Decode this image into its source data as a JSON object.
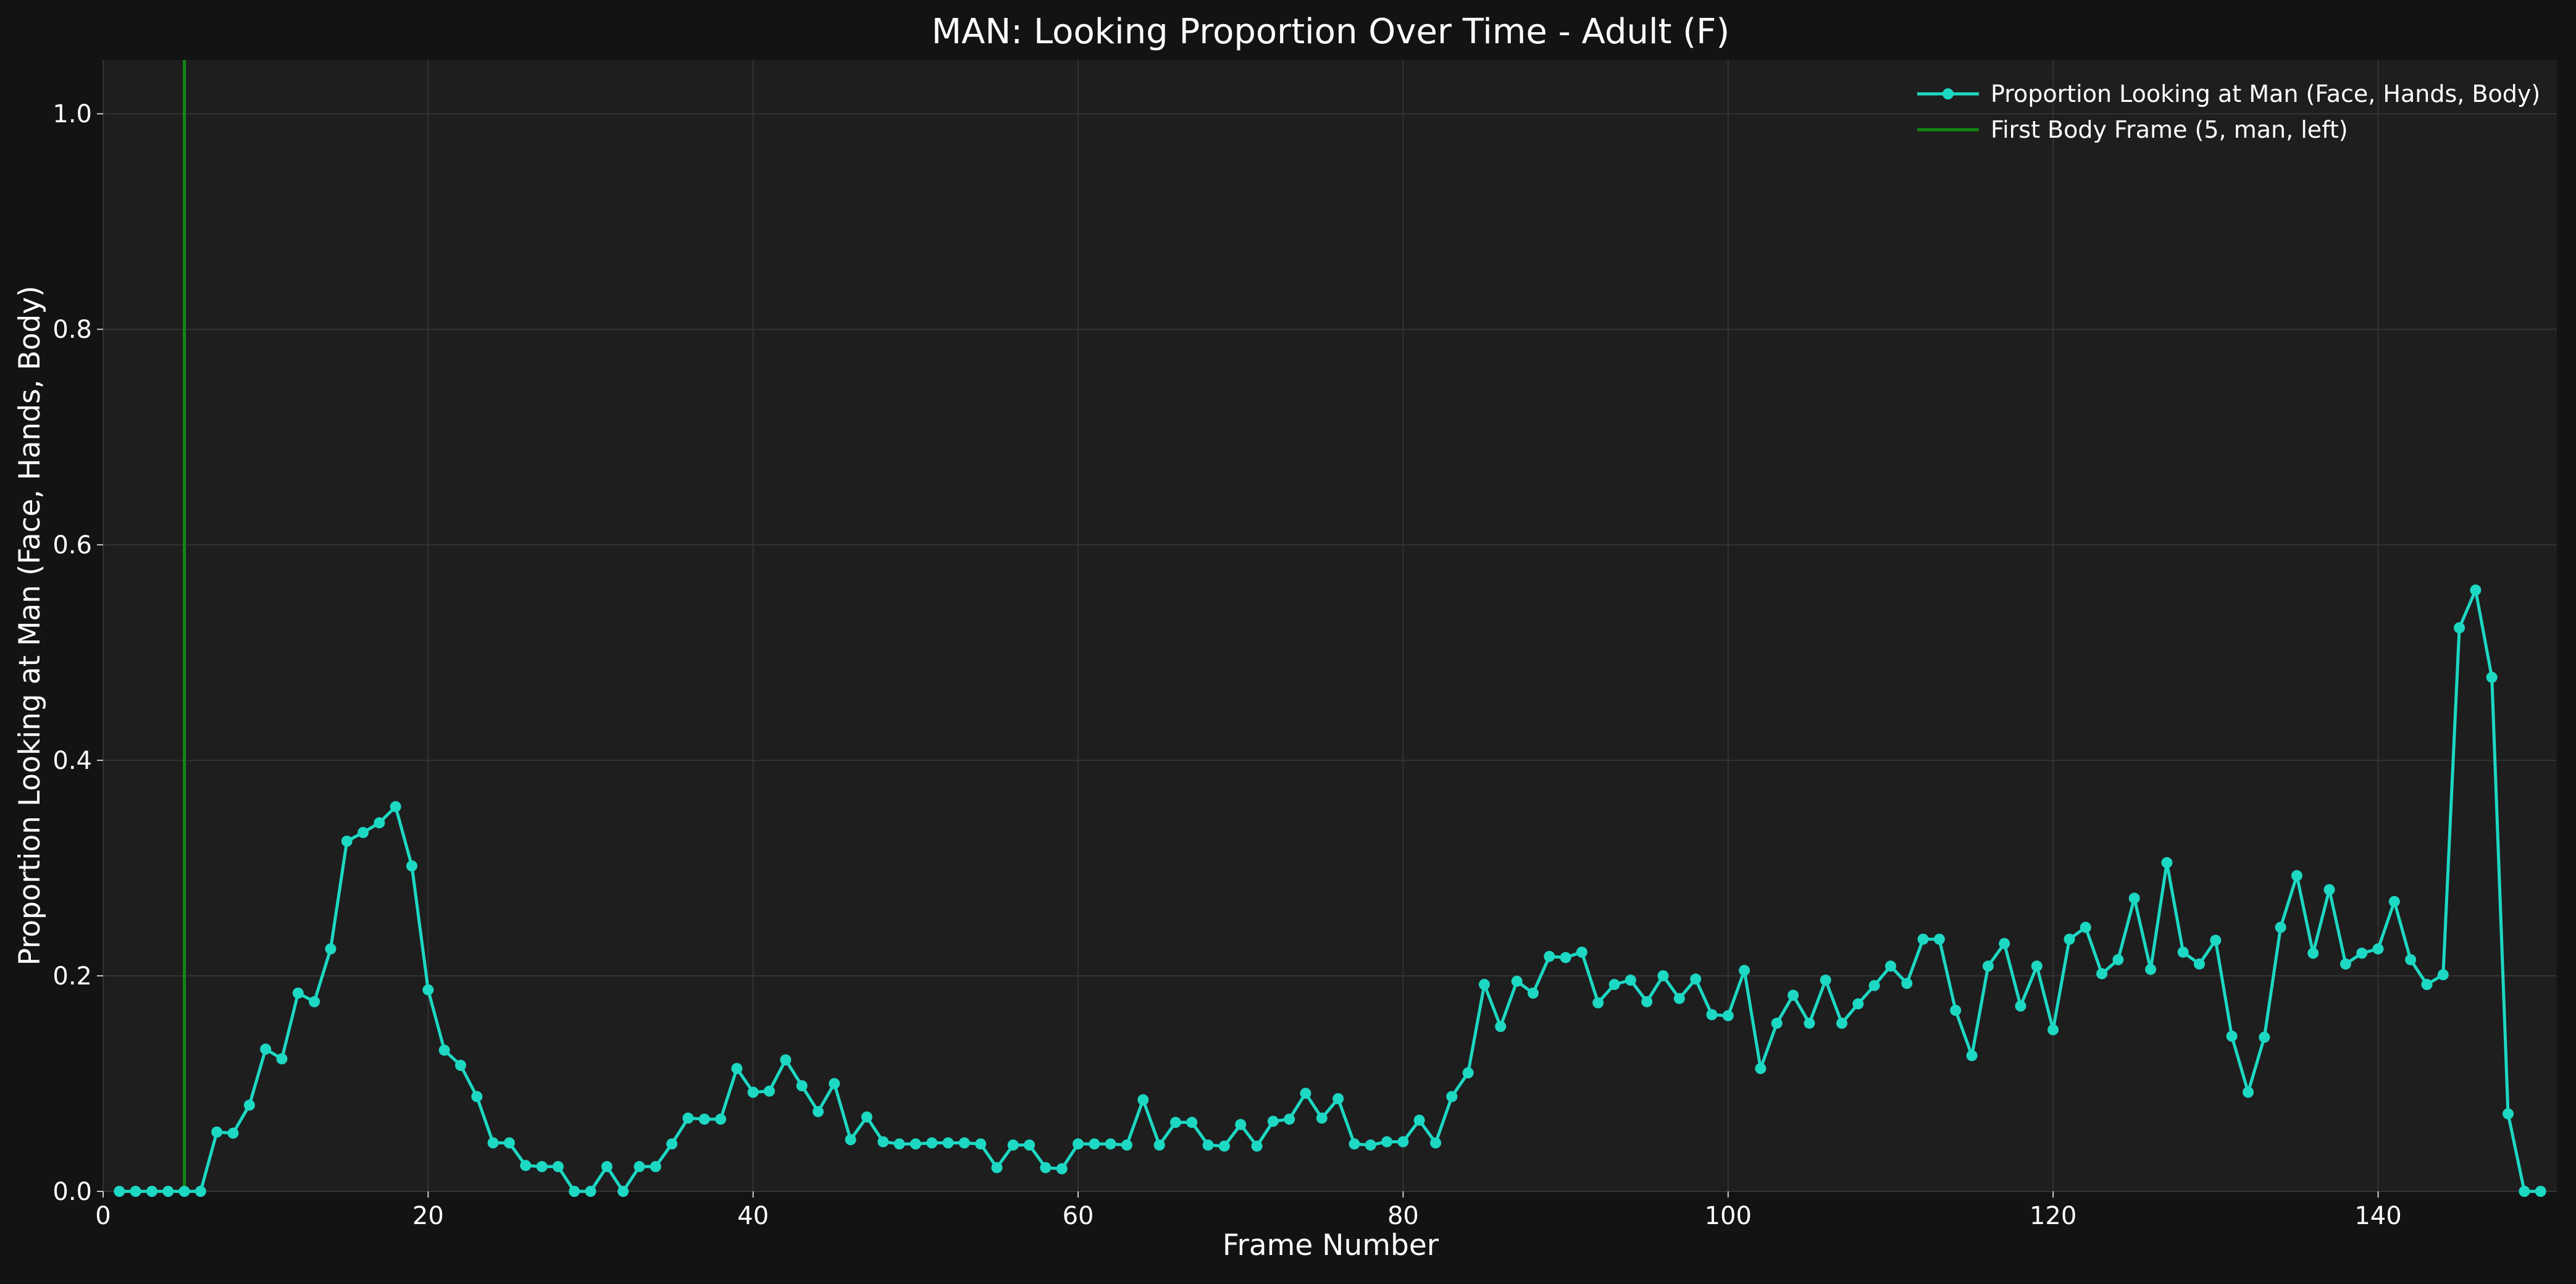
{
  "chart_data": {
    "type": "line",
    "title": "MAN: Looking Proportion Over Time - Adult (F)",
    "xlabel": "Frame Number",
    "ylabel": "Proportion Looking at Man (Face, Hands, Body)",
    "xlim": [
      0,
      151
    ],
    "ylim": [
      0,
      1.05
    ],
    "x_ticks": [
      0,
      20,
      40,
      60,
      80,
      100,
      120,
      140
    ],
    "y_ticks": [
      0.0,
      0.2,
      0.4,
      0.6,
      0.8,
      1.0
    ],
    "x_tick_labels": [
      "0",
      "20",
      "40",
      "60",
      "80",
      "100",
      "120",
      "140"
    ],
    "y_tick_labels": [
      "0.0",
      "0.2",
      "0.4",
      "0.6",
      "0.8",
      "1.0"
    ],
    "grid": true,
    "legend_position": "top-right",
    "series": [
      {
        "name": "Proportion Looking at Man (Face, Hands, Body)",
        "color": "#1dd8c3",
        "marker": "circle",
        "x": [
          1,
          2,
          3,
          4,
          5,
          6,
          7,
          8,
          9,
          10,
          11,
          12,
          13,
          14,
          15,
          16,
          17,
          18,
          19,
          20,
          21,
          22,
          23,
          24,
          25,
          26,
          27,
          28,
          29,
          30,
          31,
          32,
          33,
          34,
          35,
          36,
          37,
          38,
          39,
          40,
          41,
          42,
          43,
          44,
          45,
          46,
          47,
          48,
          49,
          50,
          51,
          52,
          53,
          54,
          55,
          56,
          57,
          58,
          59,
          60,
          61,
          62,
          63,
          64,
          65,
          66,
          67,
          68,
          69,
          70,
          71,
          72,
          73,
          74,
          75,
          76,
          77,
          78,
          79,
          80,
          81,
          82,
          83,
          84,
          85,
          86,
          87,
          88,
          89,
          90,
          91,
          92,
          93,
          94,
          95,
          96,
          97,
          98,
          99,
          100,
          101,
          102,
          103,
          104,
          105,
          106,
          107,
          108,
          109,
          110,
          111,
          112,
          113,
          114,
          115,
          116,
          117,
          118,
          119,
          120,
          121,
          122,
          123,
          124,
          125,
          126,
          127,
          128,
          129,
          130,
          131,
          132,
          133,
          134,
          135,
          136,
          137,
          138,
          139,
          140,
          141,
          142,
          143,
          144,
          145,
          146,
          147,
          148,
          149,
          150
        ],
        "y": [
          0,
          0,
          0,
          0,
          0,
          0,
          0.055,
          0.054,
          0.08,
          0.132,
          0.123,
          0.184,
          0.176,
          0.225,
          0.325,
          0.333,
          0.342,
          0.357,
          0.302,
          0.187,
          0.131,
          0.117,
          0.088,
          0.045,
          0.045,
          0.024,
          0.023,
          0.023,
          0,
          0,
          0.023,
          0,
          0.023,
          0.023,
          0.044,
          0.068,
          0.067,
          0.067,
          0.114,
          0.092,
          0.093,
          0.122,
          0.098,
          0.074,
          0.1,
          0.048,
          0.069,
          0.046,
          0.044,
          0.044,
          0.045,
          0.045,
          0.045,
          0.044,
          0.022,
          0.043,
          0.043,
          0.022,
          0.021,
          0.044,
          0.044,
          0.044,
          0.043,
          0.085,
          0.043,
          0.064,
          0.064,
          0.043,
          0.042,
          0.062,
          0.042,
          0.065,
          0.067,
          0.091,
          0.068,
          0.086,
          0.044,
          0.043,
          0.046,
          0.046,
          0.066,
          0.045,
          0.088,
          0.11,
          0.192,
          0.153,
          0.195,
          0.184,
          0.218,
          0.217,
          0.222,
          0.175,
          0.192,
          0.196,
          0.176,
          0.2,
          0.179,
          0.197,
          0.164,
          0.163,
          0.205,
          0.114,
          0.156,
          0.182,
          0.156,
          0.196,
          0.156,
          0.174,
          0.191,
          0.209,
          0.193,
          0.234,
          0.234,
          0.168,
          0.126,
          0.209,
          0.23,
          0.172,
          0.209,
          0.15,
          0.234,
          0.245,
          0.202,
          0.215,
          0.272,
          0.206,
          0.305,
          0.222,
          0.211,
          0.233,
          0.144,
          0.092,
          0.143,
          0.245,
          0.293,
          0.221,
          0.28,
          0.211,
          0.221,
          0.225,
          0.269,
          0.215,
          0.192,
          0.201,
          0.523,
          0.558,
          0.477,
          0.072,
          0,
          0
        ]
      }
    ],
    "vline": {
      "name": "First Body Frame (5, man, left)",
      "x": 5,
      "color": "#118811"
    }
  },
  "colors": {
    "figure_background": "#131313",
    "axes_background": "#1e1e1e",
    "grid": "#333333",
    "text": "#ffffff"
  }
}
